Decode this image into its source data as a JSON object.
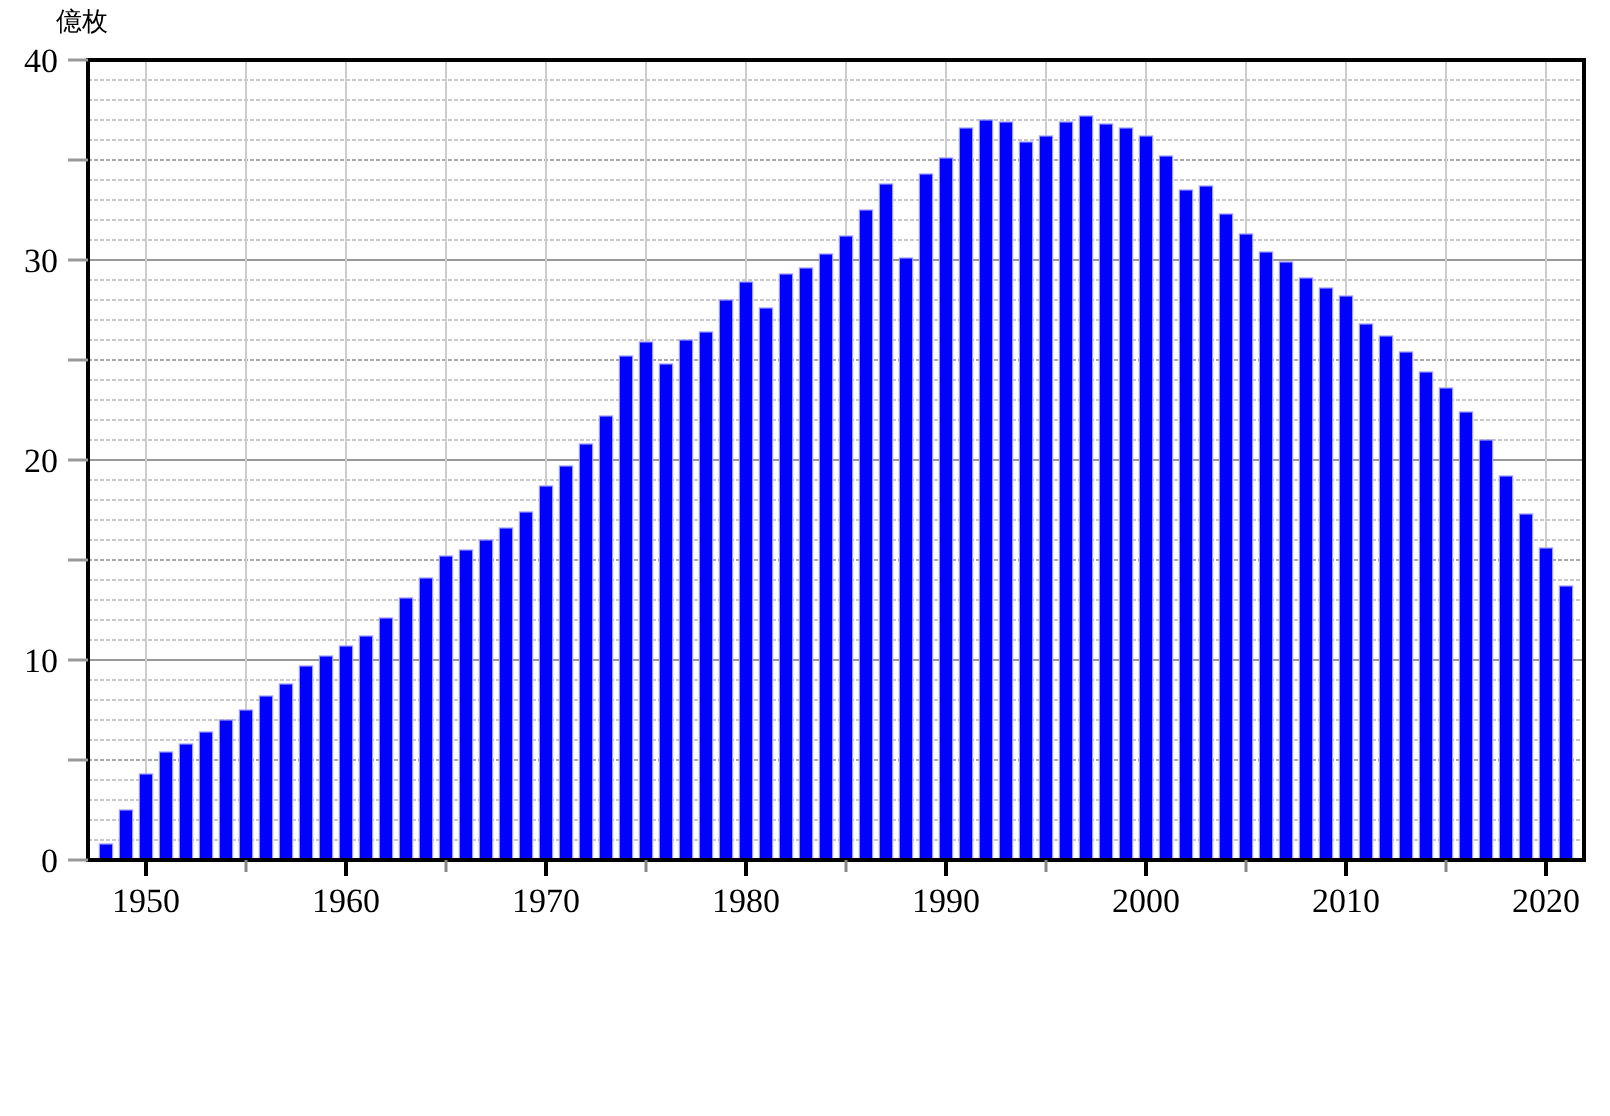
{
  "chart_data": {
    "type": "bar",
    "ylabel": "億枚",
    "x": [
      1948,
      1949,
      1950,
      1951,
      1952,
      1953,
      1954,
      1955,
      1956,
      1957,
      1958,
      1959,
      1960,
      1961,
      1962,
      1963,
      1964,
      1965,
      1966,
      1967,
      1968,
      1969,
      1970,
      1971,
      1972,
      1973,
      1974,
      1975,
      1976,
      1977,
      1978,
      1979,
      1980,
      1981,
      1982,
      1983,
      1984,
      1985,
      1986,
      1987,
      1988,
      1989,
      1990,
      1991,
      1992,
      1993,
      1994,
      1995,
      1996,
      1997,
      1998,
      1999,
      2000,
      2001,
      2002,
      2003,
      2004,
      2005,
      2006,
      2007,
      2008,
      2009,
      2010,
      2011,
      2012,
      2013,
      2014,
      2015,
      2016,
      2017,
      2018,
      2019,
      2020,
      2021
    ],
    "values": [
      0.8,
      2.5,
      4.3,
      5.4,
      5.8,
      6.4,
      7.0,
      7.5,
      8.2,
      8.8,
      9.7,
      10.2,
      10.7,
      11.2,
      12.1,
      13.1,
      14.1,
      15.2,
      15.5,
      16.0,
      16.6,
      17.4,
      18.7,
      19.7,
      20.8,
      22.2,
      25.2,
      25.9,
      24.8,
      26.0,
      26.4,
      28.0,
      28.9,
      27.6,
      29.3,
      29.6,
      30.3,
      31.2,
      32.5,
      33.8,
      30.1,
      34.3,
      35.1,
      36.6,
      37.0,
      36.9,
      35.9,
      36.2,
      36.9,
      37.2,
      36.8,
      36.6,
      36.2,
      35.2,
      33.5,
      33.7,
      32.3,
      31.3,
      30.4,
      29.9,
      29.1,
      28.6,
      28.2,
      26.8,
      26.2,
      25.4,
      24.4,
      23.6,
      22.4,
      21.0,
      19.2,
      17.3,
      15.6,
      13.7
    ],
    "color": "#0000ff",
    "xlim": [
      1947.1,
      2021.9
    ],
    "xticks": [
      1950,
      {
        "value": 1955,
        "label": null
      },
      1960,
      {
        "value": 1965,
        "label": null
      },
      1970,
      {
        "value": 1975,
        "label": null
      },
      1980,
      {
        "value": 1985,
        "label": null
      },
      1990,
      {
        "value": 1995,
        "label": null
      },
      2000,
      {
        "value": 2005,
        "label": null
      },
      2010,
      {
        "value": 2015,
        "label": null
      },
      2020
    ],
    "ylim": [
      0,
      40
    ],
    "yticks": [
      0,
      {
        "value": 1,
        "label": null
      },
      {
        "value": 2,
        "label": null
      },
      {
        "value": 3,
        "label": null
      },
      {
        "value": 4,
        "label": null
      },
      {
        "value": 5,
        "label": null
      },
      {
        "value": 6,
        "label": null
      },
      {
        "value": 7,
        "label": null
      },
      {
        "value": 8,
        "label": null
      },
      {
        "value": 9,
        "label": null
      },
      10,
      {
        "value": 11,
        "label": null
      },
      {
        "value": 12,
        "label": null
      },
      {
        "value": 13,
        "label": null
      },
      {
        "value": 14,
        "label": null
      },
      {
        "value": 15,
        "label": null
      },
      {
        "value": 16,
        "label": null
      },
      {
        "value": 17,
        "label": null
      },
      {
        "value": 18,
        "label": null
      },
      {
        "value": 19,
        "label": null
      },
      20,
      {
        "value": 21,
        "label": null
      },
      {
        "value": 22,
        "label": null
      },
      {
        "value": 23,
        "label": null
      },
      {
        "value": 24,
        "label": null
      },
      {
        "value": 25,
        "label": null
      },
      {
        "value": 26,
        "label": null
      },
      {
        "value": 27,
        "label": null
      },
      {
        "value": 28,
        "label": null
      },
      {
        "value": 29,
        "label": null
      },
      30,
      {
        "value": 31,
        "label": null
      },
      {
        "value": 32,
        "label": null
      },
      {
        "value": 33,
        "label": null
      },
      {
        "value": 34,
        "label": null
      },
      {
        "value": 35,
        "label": null
      },
      {
        "value": 36,
        "label": null
      },
      {
        "value": 37,
        "label": null
      },
      {
        "value": 38,
        "label": null
      },
      {
        "value": 39,
        "label": null
      },
      40
    ],
    "grid": true
  }
}
